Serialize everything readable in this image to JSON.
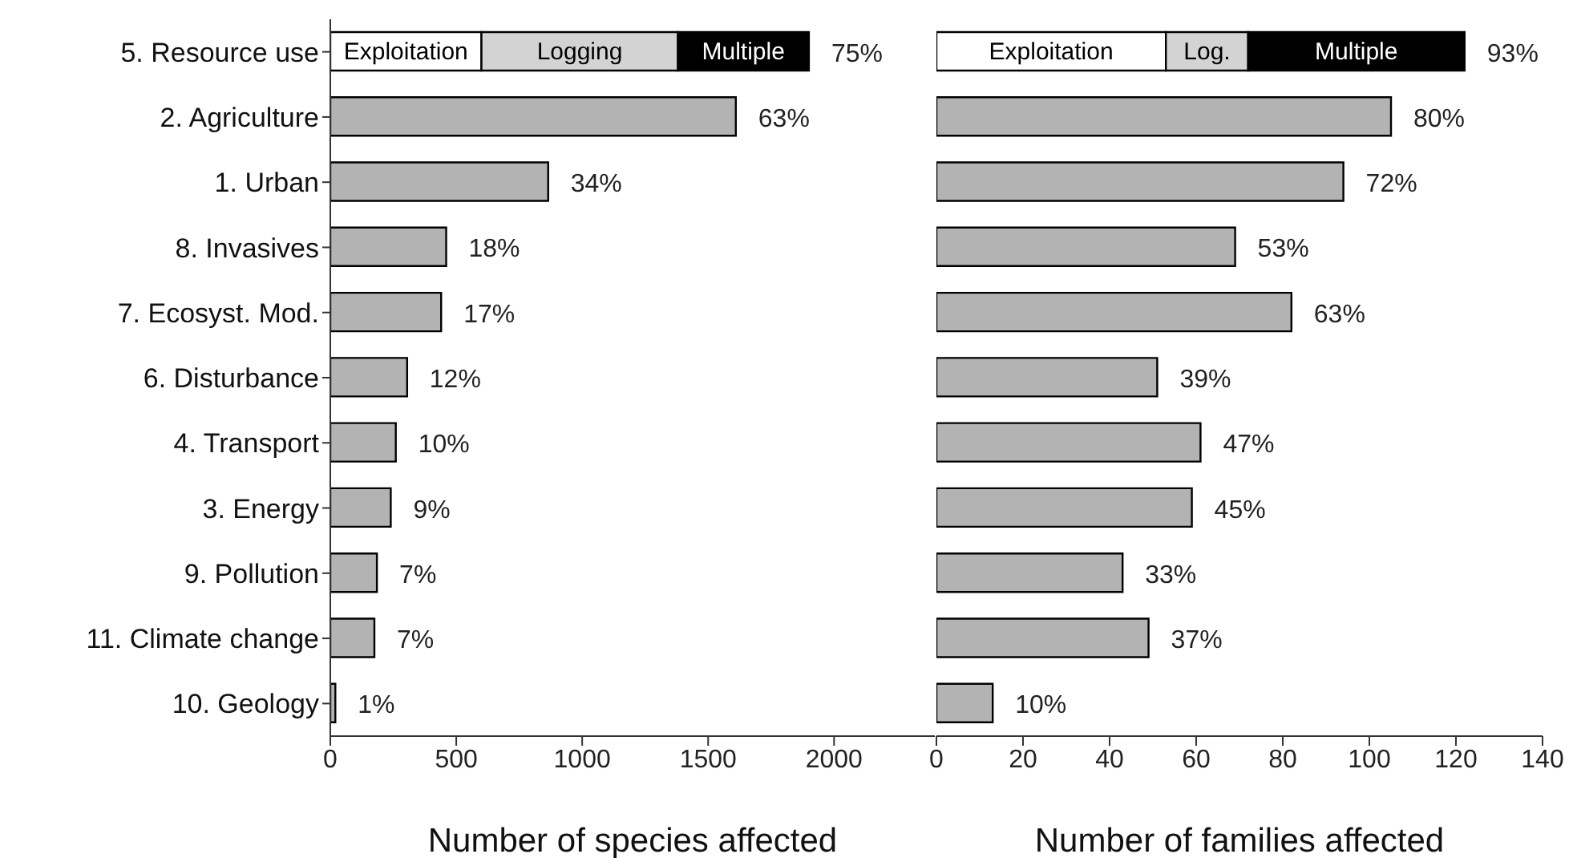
{
  "chart_data": [
    {
      "type": "bar",
      "orientation": "horizontal",
      "stacked": true,
      "legend": false,
      "grid": false,
      "xlabel": "Number of species affected",
      "categories": [
        "5. Resource use",
        "2. Agriculture",
        "1. Urban",
        "8. Invasives",
        "7. Ecosyst. Mod.",
        "6. Disturbance",
        "4. Transport",
        "3. Energy",
        "9. Pollution",
        "11. Climate change",
        "10. Geology"
      ],
      "xlim": [
        0,
        2400
      ],
      "xticks": [
        0,
        500,
        1000,
        1500,
        2000
      ],
      "series": [
        {
          "name": "Exploitation",
          "color": "#ffffff",
          "values": [
            600,
            null,
            null,
            null,
            null,
            null,
            null,
            null,
            null,
            null,
            null
          ]
        },
        {
          "name": "Logging",
          "color": "#d3d3d3",
          "values": [
            780,
            null,
            null,
            null,
            null,
            null,
            null,
            null,
            null,
            null,
            null
          ]
        },
        {
          "name": "Multiple",
          "color": "#000000",
          "values": [
            520,
            null,
            null,
            null,
            null,
            null,
            null,
            null,
            null,
            null,
            null
          ]
        },
        {
          "color": "#b3b3b3",
          "values": [
            null,
            1610,
            865,
            460,
            440,
            305,
            260,
            240,
            185,
            175,
            20
          ]
        }
      ],
      "annotations": [
        {
          "text": "75%",
          "x": 1900,
          "y": "5. Resource use"
        },
        {
          "text": "63%",
          "x": 1610,
          "y": "2. Agriculture"
        },
        {
          "text": "34%",
          "x": 865,
          "y": "1. Urban"
        },
        {
          "text": "18%",
          "x": 460,
          "y": "8. Invasives"
        },
        {
          "text": "17%",
          "x": 440,
          "y": "7. Ecosyst. Mod."
        },
        {
          "text": "12%",
          "x": 305,
          "y": "6. Disturbance"
        },
        {
          "text": "10%",
          "x": 260,
          "y": "4. Transport"
        },
        {
          "text": "9%",
          "x": 240,
          "y": "3. Energy"
        },
        {
          "text": "7%",
          "x": 185,
          "y": "9. Pollution"
        },
        {
          "text": "7%",
          "x": 175,
          "y": "11. Climate change"
        },
        {
          "text": "1%",
          "x": 20,
          "y": "10. Geology"
        }
      ]
    },
    {
      "type": "bar",
      "orientation": "horizontal",
      "stacked": true,
      "legend": false,
      "grid": false,
      "xlabel": "Number of families affected",
      "tick_labels": "x",
      "categories": [
        "5. Resource use",
        "2. Agriculture",
        "1. Urban",
        "8. Invasives",
        "7. Ecosyst. Mod.",
        "6. Disturbance",
        "4. Transport",
        "3. Energy",
        "9. Pollution",
        "11. Climate change",
        "10. Geology"
      ],
      "xlim": [
        0,
        140
      ],
      "xticks": [
        0,
        20,
        40,
        60,
        80,
        100,
        120,
        140
      ],
      "series": [
        {
          "name": "Exploitation",
          "color": "#ffffff",
          "values": [
            53,
            null,
            null,
            null,
            null,
            null,
            null,
            null,
            null,
            null,
            null
          ]
        },
        {
          "name": "Log.",
          "color": "#d3d3d3",
          "values": [
            19,
            null,
            null,
            null,
            null,
            null,
            null,
            null,
            null,
            null,
            null
          ]
        },
        {
          "name": "Multiple",
          "color": "#000000",
          "values": [
            50,
            null,
            null,
            null,
            null,
            null,
            null,
            null,
            null,
            null,
            null
          ]
        },
        {
          "color": "#b3b3b3",
          "values": [
            null,
            105,
            94,
            69,
            82,
            51,
            61,
            59,
            43,
            49,
            13
          ]
        }
      ],
      "annotations": [
        {
          "text": "93%",
          "x": 122,
          "y": "5. Resource use"
        },
        {
          "text": "80%",
          "x": 105,
          "y": "2. Agriculture"
        },
        {
          "text": "72%",
          "x": 94,
          "y": "1. Urban"
        },
        {
          "text": "53%",
          "x": 69,
          "y": "8. Invasives"
        },
        {
          "text": "63%",
          "x": 82,
          "y": "7. Ecosyst. Mod."
        },
        {
          "text": "39%",
          "x": 51,
          "y": "6. Disturbance"
        },
        {
          "text": "47%",
          "x": 61,
          "y": "4. Transport"
        },
        {
          "text": "45%",
          "x": 59,
          "y": "3. Energy"
        },
        {
          "text": "33%",
          "x": 43,
          "y": "9. Pollution"
        },
        {
          "text": "37%",
          "x": 49,
          "y": "11. Climate change"
        },
        {
          "text": "10%",
          "x": 13,
          "y": "10. Geology"
        }
      ]
    }
  ]
}
